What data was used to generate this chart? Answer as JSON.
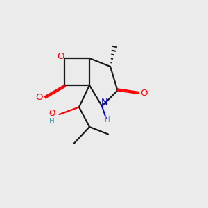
{
  "background_color": "#ebebeb",
  "atom_colors": {
    "O": "#ff0000",
    "N": "#0000cc",
    "C": "#1a1a1a",
    "H": "#4a9a9a"
  },
  "figsize": [
    3.0,
    3.0
  ],
  "dpi": 100,
  "bond_lw": 1.6,
  "font_size": 9.5,
  "font_size_small": 7.5
}
